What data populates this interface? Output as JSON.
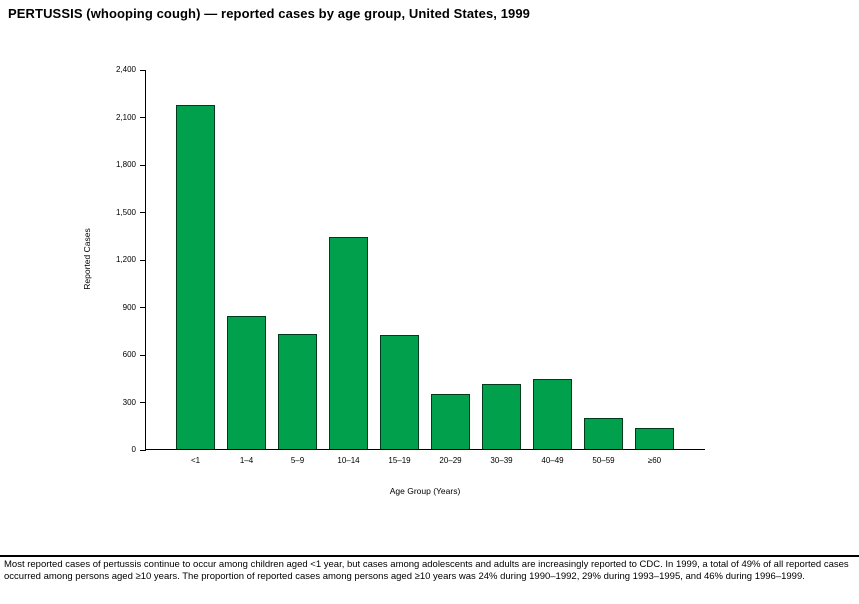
{
  "title": "PERTUSSIS (whooping cough) — reported cases by age group, United States, 1999",
  "chart_data": {
    "type": "bar",
    "categories": [
      "<1",
      "1–4",
      "5–9",
      "10–14",
      "15–19",
      "20–29",
      "30–39",
      "40–49",
      "50–59",
      "≥60"
    ],
    "values": [
      2175,
      840,
      725,
      1340,
      720,
      345,
      410,
      440,
      195,
      135
    ],
    "title": "PERTUSSIS (whooping cough) — reported cases by age group, United States, 1999",
    "xlabel": "Age Group (Years)",
    "ylabel": "Reported Cases",
    "ylim": [
      0,
      2400
    ],
    "ytick_interval": 300,
    "ytick_labels": [
      "0",
      "300",
      "600",
      "900",
      "1,200",
      "1,500",
      "1,800",
      "2,100",
      "2,400"
    ],
    "bar_color": "#00A04C",
    "grid": false,
    "legend": false
  },
  "footnote": "Most reported cases of pertussis continue to occur among children aged <1 year, but cases among adolescents and adults are increasingly reported to CDC. In 1999, a total of 49% of all reported cases occurred among persons aged ≥10 years. The proportion of reported cases among persons aged ≥10 years was 24% during 1990–1992, 29% during 1993–1995, and 46% during 1996–1999."
}
